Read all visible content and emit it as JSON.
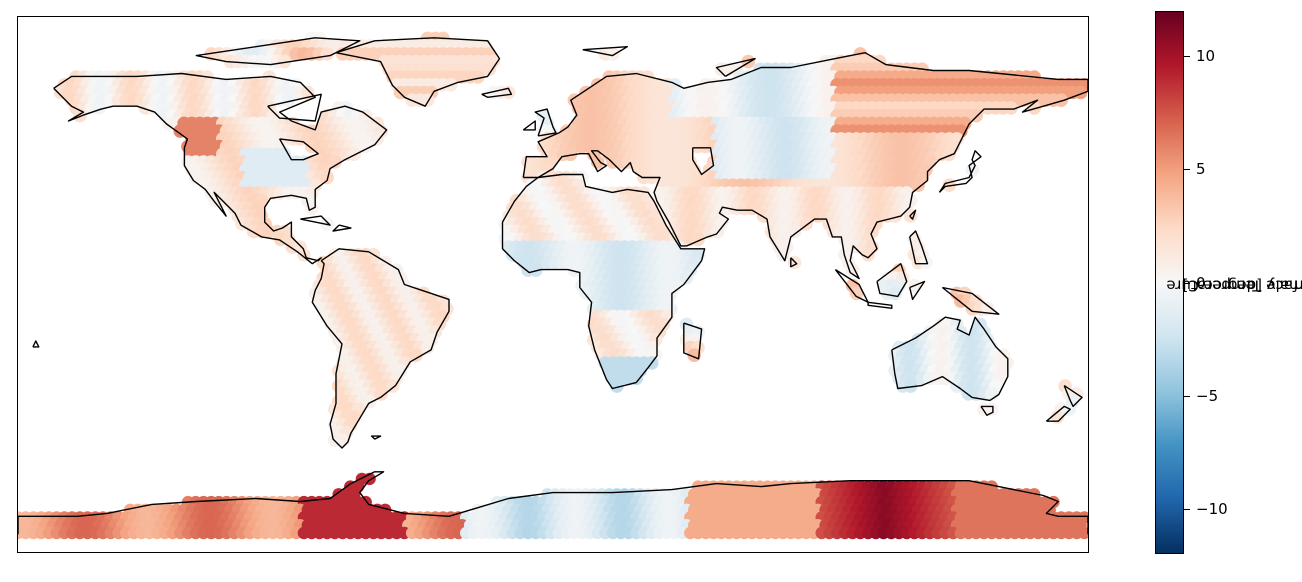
{
  "colorbar": {
    "label_line1": "Air Surface Temperature",
    "label_line2": "Anomaly [degree C]",
    "range": [
      -12,
      12
    ],
    "colormap": "RdBu_r",
    "ticks": [
      {
        "value": 10,
        "label": "10"
      },
      {
        "value": 5,
        "label": "5"
      },
      {
        "value": 0,
        "label": "0"
      },
      {
        "value": -5,
        "label": "−5"
      },
      {
        "value": -10,
        "label": "−10"
      }
    ],
    "colors": [
      "#053061",
      "#2166ac",
      "#4393c3",
      "#92c5de",
      "#d1e5f0",
      "#f7f7f7",
      "#fddbc7",
      "#f4a582",
      "#d6604d",
      "#b2182b",
      "#67001f"
    ]
  },
  "map": {
    "projection": "PlateCarree",
    "coastline_color": "#000000",
    "regions": [
      {
        "name": "North America",
        "anomaly": 1.5
      },
      {
        "name": "Northwest North America",
        "anomaly": 6
      },
      {
        "name": "Canada",
        "anomaly": 1
      },
      {
        "name": "Central United States",
        "anomaly": -1.5
      },
      {
        "name": "Greenland",
        "anomaly": 2
      },
      {
        "name": "South America",
        "anomaly": 1.5
      },
      {
        "name": "Europe",
        "anomaly": 2.5
      },
      {
        "name": "Northern Eurasia",
        "anomaly": -1
      },
      {
        "name": "Central Asia",
        "anomaly": -1.5
      },
      {
        "name": "Siberia",
        "anomaly": 4
      },
      {
        "name": "Africa",
        "anomaly": 1
      },
      {
        "name": "Central Africa",
        "anomaly": -1.5
      },
      {
        "name": "Southern Africa",
        "anomaly": -3
      },
      {
        "name": "India and Southeast Asia",
        "anomaly": 1.5
      },
      {
        "name": "Australia",
        "anomaly": -1
      },
      {
        "name": "West Antarctica",
        "anomaly": 5.5
      },
      {
        "name": "Antarctic Peninsula",
        "anomaly": 9
      },
      {
        "name": "East Antarctica (central)",
        "anomaly": -2
      },
      {
        "name": "East Antarctica (Wilkes Land)",
        "anomaly": 11
      }
    ]
  }
}
